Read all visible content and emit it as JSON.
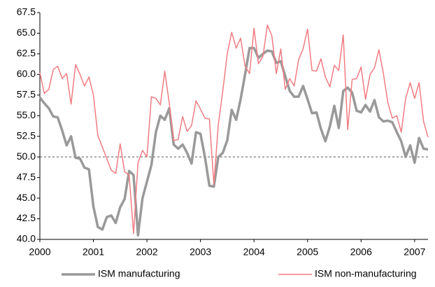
{
  "chart_data": {
    "type": "line",
    "x": [
      2000,
      2000.083,
      2000.167,
      2000.25,
      2000.333,
      2000.417,
      2000.5,
      2000.583,
      2000.667,
      2000.75,
      2000.833,
      2000.917,
      2001,
      2001.083,
      2001.167,
      2001.25,
      2001.333,
      2001.417,
      2001.5,
      2001.583,
      2001.667,
      2001.75,
      2001.833,
      2001.917,
      2002,
      2002.083,
      2002.167,
      2002.25,
      2002.333,
      2002.417,
      2002.5,
      2002.583,
      2002.667,
      2002.75,
      2002.833,
      2002.917,
      2003,
      2003.083,
      2003.167,
      2003.25,
      2003.333,
      2003.417,
      2003.5,
      2003.583,
      2003.667,
      2003.75,
      2003.833,
      2003.917,
      2004,
      2004.083,
      2004.167,
      2004.25,
      2004.333,
      2004.417,
      2004.5,
      2004.583,
      2004.667,
      2004.75,
      2004.833,
      2004.917,
      2005,
      2005.083,
      2005.167,
      2005.25,
      2005.333,
      2005.417,
      2005.5,
      2005.583,
      2005.667,
      2005.75,
      2005.833,
      2005.917,
      2006,
      2006.083,
      2006.167,
      2006.25,
      2006.333,
      2006.417,
      2006.5,
      2006.583,
      2006.667,
      2006.75,
      2006.833,
      2006.917,
      2007,
      2007.083,
      2007.167,
      2007.25
    ],
    "series": [
      {
        "name": "ISM manufacturing",
        "color": "#999999",
        "width": 3.5,
        "values": [
          57.2,
          56.5,
          55.9,
          54.9,
          54.8,
          53.2,
          51.4,
          52.5,
          49.9,
          49.8,
          48.7,
          48.5,
          44.0,
          41.5,
          41.2,
          42.7,
          42.9,
          42.0,
          43.9,
          44.9,
          48.3,
          47.8,
          40.5,
          45.0,
          47.0,
          49.0,
          53.0,
          55.0,
          54.5,
          55.9,
          51.5,
          51.0,
          51.5,
          50.5,
          49.2,
          53.0,
          52.8,
          50.0,
          46.5,
          46.4,
          50.0,
          50.5,
          52.0,
          55.7,
          54.5,
          57.0,
          60.0,
          63.2,
          63.2,
          62.0,
          62.5,
          62.9,
          62.8,
          61.4,
          61.6,
          59.8,
          58.0,
          57.3,
          57.3,
          58.6,
          57.0,
          55.3,
          55.4,
          53.4,
          51.9,
          53.7,
          56.2,
          53.5,
          58.0,
          58.4,
          57.8,
          55.6,
          55.4,
          56.3,
          55.5,
          56.9,
          54.8,
          54.3,
          54.4,
          54.2,
          53.0,
          51.9,
          50.0,
          51.4,
          49.3,
          52.3,
          51.0,
          50.9
        ]
      },
      {
        "name": "ISM non-manufacturing",
        "color": "#f07c82",
        "width": 1.5,
        "values": [
          60.2,
          57.7,
          58.2,
          60.6,
          61.0,
          59.5,
          60.1,
          56.4,
          61.2,
          60.0,
          58.6,
          59.7,
          57.5,
          52.6,
          51.2,
          49.8,
          48.4,
          48.0,
          51.6,
          48.2,
          47.8,
          40.7,
          49.3,
          50.8,
          50.0,
          57.3,
          57.1,
          56.3,
          60.4,
          56.5,
          52.0,
          52.1,
          54.9,
          53.1,
          53.8,
          56.8,
          55.8,
          54.7,
          54.6,
          46.7,
          53.9,
          58.0,
          62.5,
          65.1,
          63.2,
          64.4,
          61.0,
          60.1,
          65.6,
          61.3,
          62.2,
          66.0,
          64.7,
          60.1,
          63.1,
          58.2,
          59.5,
          58.6,
          61.8,
          63.1,
          65.5,
          60.5,
          60.4,
          61.9,
          59.7,
          58.5,
          61.1,
          60.5,
          64.8,
          53.3,
          59.4,
          59.5,
          60.9,
          57.0,
          60.0,
          60.8,
          63.0,
          60.1,
          56.6,
          54.7,
          55.0,
          53.0,
          57.1,
          59.0,
          57.1,
          59.0,
          54.3,
          52.4
        ]
      }
    ],
    "xlim": [
      2000,
      2007.25
    ],
    "xticks": [
      2000,
      2001,
      2002,
      2003,
      2004,
      2005,
      2006,
      2007
    ],
    "ylim": [
      40,
      67.5
    ],
    "yticks": [
      {
        "value": 40,
        "label": "40.0"
      },
      {
        "value": 42.5,
        "label": "42.5"
      },
      {
        "value": 45,
        "label": "45.0"
      },
      {
        "value": 47.5,
        "label": "47.5"
      },
      {
        "value": 50,
        "label": "50.0"
      },
      {
        "value": 52.5,
        "label": "52.5"
      },
      {
        "value": 55,
        "label": "55.0"
      },
      {
        "value": 57.5,
        "label": "57.5"
      },
      {
        "value": 60,
        "label": "60.0"
      },
      {
        "value": 62.5,
        "label": "62.5"
      },
      {
        "value": 65,
        "label": "65.0"
      },
      {
        "value": 67.5,
        "label": "67.5"
      }
    ],
    "reference_line": 50,
    "legend": "bottom"
  }
}
